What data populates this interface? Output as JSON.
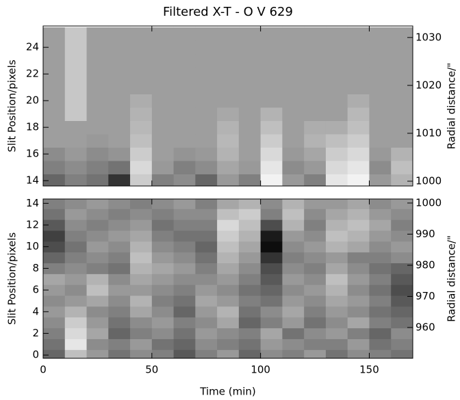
{
  "chart_data": [
    {
      "type": "heatmap",
      "title": "Filtered X-T - O V 629",
      "ylabel": "Slit Position/pixels",
      "y2label": "Radial distance/\"",
      "xbins": [
        0,
        10,
        20,
        30,
        40,
        50,
        60,
        70,
        80,
        90,
        100,
        110,
        120,
        130,
        140,
        150,
        160,
        170
      ],
      "y": [
        14,
        15,
        16,
        17,
        18,
        19,
        20,
        21,
        22,
        23,
        24,
        25
      ],
      "z": [
        [
          0.4,
          0.5,
          0.45,
          0.2,
          0.8,
          0.5,
          0.55,
          0.4,
          0.6,
          0.5,
          0.95,
          0.6,
          0.5,
          0.9,
          0.95,
          0.6,
          0.7
        ],
        [
          0.5,
          0.55,
          0.5,
          0.45,
          0.85,
          0.6,
          0.5,
          0.55,
          0.65,
          0.6,
          0.9,
          0.55,
          0.6,
          0.85,
          0.9,
          0.55,
          0.75
        ],
        [
          0.55,
          0.6,
          0.55,
          0.58,
          0.8,
          0.62,
          0.58,
          0.6,
          0.7,
          0.62,
          0.85,
          0.6,
          0.65,
          0.8,
          0.85,
          0.6,
          0.7
        ],
        [
          0.62,
          0.62,
          0.6,
          0.62,
          0.75,
          0.62,
          0.62,
          0.62,
          0.72,
          0.62,
          0.8,
          0.62,
          0.7,
          0.75,
          0.8,
          0.62,
          0.62
        ],
        [
          0.62,
          0.62,
          0.62,
          0.62,
          0.72,
          0.62,
          0.62,
          0.62,
          0.7,
          0.62,
          0.75,
          0.62,
          0.68,
          0.68,
          0.75,
          0.62,
          0.62
        ],
        [
          0.62,
          0.78,
          0.62,
          0.62,
          0.7,
          0.62,
          0.62,
          0.62,
          0.66,
          0.62,
          0.7,
          0.62,
          0.62,
          0.62,
          0.72,
          0.62,
          0.62
        ],
        [
          0.62,
          0.78,
          0.62,
          0.62,
          0.68,
          0.62,
          0.62,
          0.62,
          0.62,
          0.62,
          0.62,
          0.62,
          0.62,
          0.62,
          0.68,
          0.62,
          0.62
        ],
        [
          0.62,
          0.78,
          0.62,
          0.62,
          0.62,
          0.62,
          0.62,
          0.62,
          0.62,
          0.62,
          0.62,
          0.62,
          0.62,
          0.62,
          0.62,
          0.62,
          0.62
        ],
        [
          0.62,
          0.78,
          0.62,
          0.62,
          0.62,
          0.62,
          0.62,
          0.62,
          0.62,
          0.62,
          0.62,
          0.62,
          0.62,
          0.62,
          0.62,
          0.62,
          0.62
        ],
        [
          0.62,
          0.78,
          0.62,
          0.62,
          0.62,
          0.62,
          0.62,
          0.62,
          0.62,
          0.62,
          0.62,
          0.62,
          0.62,
          0.62,
          0.62,
          0.62,
          0.62
        ],
        [
          0.62,
          0.78,
          0.62,
          0.62,
          0.62,
          0.62,
          0.62,
          0.62,
          0.62,
          0.62,
          0.62,
          0.62,
          0.62,
          0.62,
          0.62,
          0.62,
          0.62
        ],
        [
          0.62,
          0.78,
          0.62,
          0.62,
          0.62,
          0.62,
          0.62,
          0.62,
          0.62,
          0.62,
          0.62,
          0.62,
          0.62,
          0.62,
          0.62,
          0.62,
          0.62
        ]
      ],
      "xlim": [
        0,
        170
      ],
      "xticks": [
        0,
        50,
        100,
        150
      ],
      "ylim": [
        13.6,
        25.6
      ],
      "yticks": [
        14,
        16,
        18,
        20,
        22,
        24
      ],
      "y2lim": [
        999,
        1032.4
      ],
      "y2ticks": [
        1000,
        1010,
        1020,
        1030
      ]
    },
    {
      "type": "heatmap",
      "xlabel": "Time (min)",
      "ylabel": "Slit Position/pixels",
      "y2label": "Radial distance/\"",
      "xbins": [
        0,
        10,
        20,
        30,
        40,
        50,
        60,
        70,
        80,
        90,
        100,
        110,
        120,
        130,
        140,
        150,
        160,
        170
      ],
      "y": [
        0,
        1,
        2,
        3,
        4,
        5,
        6,
        7,
        8,
        9,
        10,
        11,
        12,
        13,
        14
      ],
      "z": [
        [
          0.4,
          0.75,
          0.6,
          0.45,
          0.55,
          0.5,
          0.35,
          0.5,
          0.6,
          0.4,
          0.55,
          0.5,
          0.6,
          0.45,
          0.55,
          0.5,
          0.45
        ],
        [
          0.45,
          0.9,
          0.55,
          0.5,
          0.6,
          0.45,
          0.4,
          0.55,
          0.5,
          0.45,
          0.6,
          0.55,
          0.5,
          0.5,
          0.6,
          0.45,
          0.5
        ],
        [
          0.5,
          0.85,
          0.65,
          0.4,
          0.5,
          0.55,
          0.45,
          0.6,
          0.55,
          0.5,
          0.65,
          0.45,
          0.55,
          0.6,
          0.5,
          0.4,
          0.55
        ],
        [
          0.55,
          0.8,
          0.6,
          0.45,
          0.55,
          0.6,
          0.5,
          0.55,
          0.65,
          0.4,
          0.5,
          0.6,
          0.45,
          0.55,
          0.65,
          0.5,
          0.45
        ],
        [
          0.6,
          0.7,
          0.55,
          0.5,
          0.65,
          0.55,
          0.4,
          0.6,
          0.7,
          0.45,
          0.55,
          0.65,
          0.5,
          0.6,
          0.55,
          0.45,
          0.4
        ],
        [
          0.55,
          0.6,
          0.65,
          0.55,
          0.7,
          0.5,
          0.45,
          0.65,
          0.6,
          0.5,
          0.45,
          0.6,
          0.55,
          0.65,
          0.6,
          0.5,
          0.35
        ],
        [
          0.6,
          0.55,
          0.75,
          0.6,
          0.6,
          0.55,
          0.5,
          0.6,
          0.55,
          0.45,
          0.4,
          0.55,
          0.6,
          0.7,
          0.55,
          0.45,
          0.3
        ],
        [
          0.65,
          0.6,
          0.7,
          0.55,
          0.65,
          0.6,
          0.55,
          0.55,
          0.6,
          0.5,
          0.35,
          0.6,
          0.55,
          0.75,
          0.6,
          0.5,
          0.35
        ],
        [
          0.5,
          0.55,
          0.5,
          0.45,
          0.7,
          0.65,
          0.6,
          0.5,
          0.65,
          0.55,
          0.3,
          0.55,
          0.5,
          0.65,
          0.55,
          0.45,
          0.4
        ],
        [
          0.4,
          0.5,
          0.55,
          0.5,
          0.75,
          0.6,
          0.55,
          0.45,
          0.7,
          0.6,
          0.2,
          0.5,
          0.55,
          0.6,
          0.5,
          0.5,
          0.55
        ],
        [
          0.3,
          0.45,
          0.6,
          0.55,
          0.7,
          0.55,
          0.5,
          0.4,
          0.75,
          0.65,
          0.05,
          0.55,
          0.6,
          0.7,
          0.65,
          0.55,
          0.6
        ],
        [
          0.25,
          0.5,
          0.55,
          0.6,
          0.65,
          0.5,
          0.45,
          0.45,
          0.8,
          0.7,
          0.1,
          0.6,
          0.55,
          0.75,
          0.7,
          0.6,
          0.55
        ],
        [
          0.35,
          0.55,
          0.5,
          0.55,
          0.6,
          0.45,
          0.5,
          0.5,
          0.85,
          0.75,
          0.3,
          0.7,
          0.5,
          0.7,
          0.75,
          0.65,
          0.5
        ],
        [
          0.45,
          0.6,
          0.55,
          0.5,
          0.55,
          0.5,
          0.55,
          0.55,
          0.75,
          0.8,
          0.5,
          0.75,
          0.55,
          0.65,
          0.7,
          0.6,
          0.55
        ],
        [
          0.5,
          0.55,
          0.6,
          0.55,
          0.5,
          0.55,
          0.6,
          0.5,
          0.65,
          0.7,
          0.55,
          0.7,
          0.6,
          0.6,
          0.65,
          0.55,
          0.6
        ]
      ],
      "xlim": [
        0,
        170
      ],
      "xticks": [
        0,
        50,
        100,
        150
      ],
      "ylim": [
        -0.3,
        14.4
      ],
      "yticks": [
        0,
        2,
        4,
        6,
        8,
        10,
        12,
        14
      ],
      "y2lim": [
        950.1,
        1001.3
      ],
      "y2ticks": [
        960,
        970,
        980,
        990,
        1000
      ]
    }
  ]
}
